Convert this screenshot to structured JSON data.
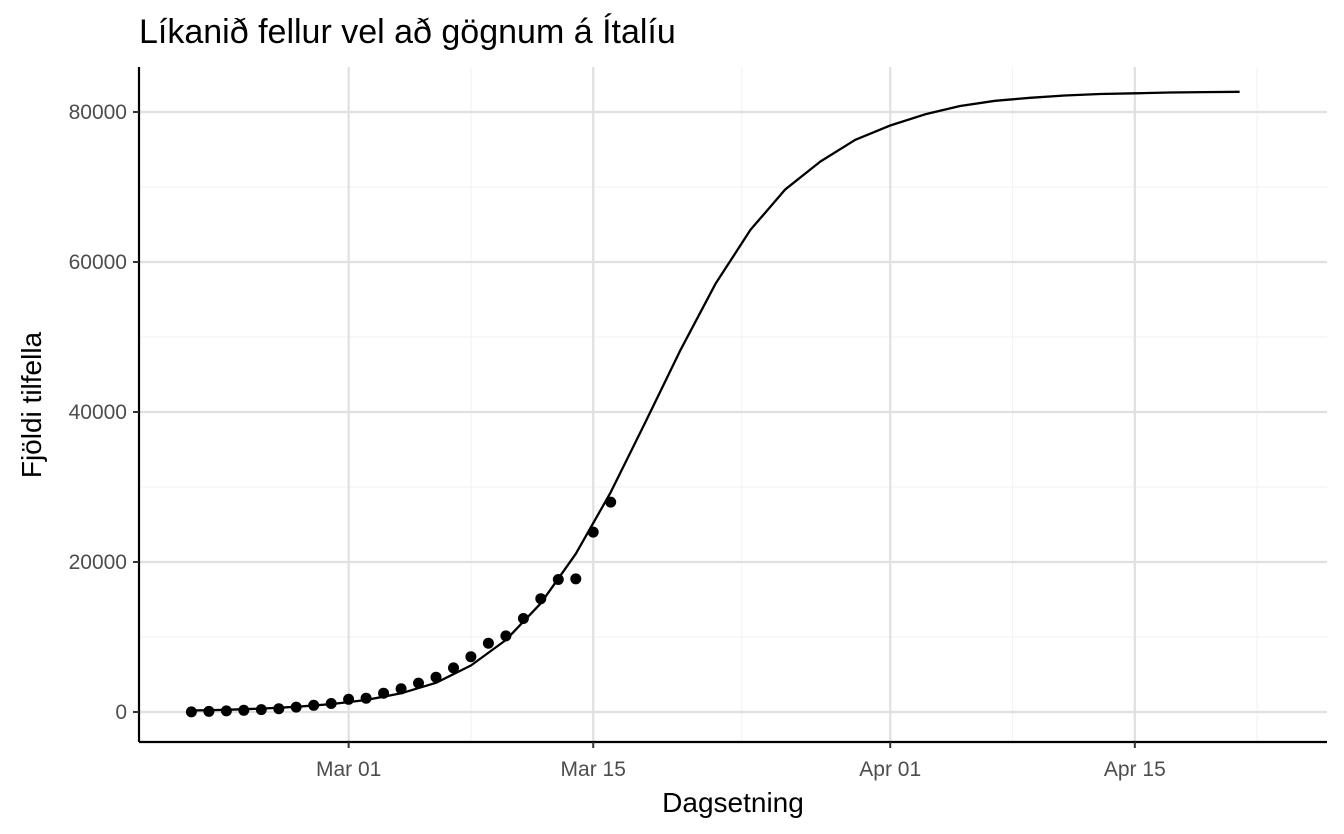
{
  "chart_data": {
    "type": "scatter",
    "title": "Líkanið fellur vel að gögnum á Ítalíu",
    "xlabel": "Dagsetning",
    "ylabel": "Fjöldi tilfella",
    "x_range": [
      "2020-02-18",
      "2020-04-26"
    ],
    "ylim": [
      -4000,
      86000
    ],
    "x_ticks": [
      {
        "date": "2020-03-01",
        "label": "Mar 01"
      },
      {
        "date": "2020-03-15",
        "label": "Mar 15"
      },
      {
        "date": "2020-04-01",
        "label": "Apr 01"
      },
      {
        "date": "2020-04-15",
        "label": "Apr 15"
      }
    ],
    "y_ticks": [
      {
        "value": 0,
        "label": "0"
      },
      {
        "value": 20000,
        "label": "20000"
      },
      {
        "value": 40000,
        "label": "40000"
      },
      {
        "value": 60000,
        "label": "60000"
      },
      {
        "value": 80000,
        "label": "80000"
      }
    ],
    "grid": true,
    "legend": "none",
    "series": [
      {
        "kind": "points",
        "color": "#000000",
        "points": [
          {
            "x": "2020-02-21",
            "y": 20
          },
          {
            "x": "2020-02-22",
            "y": 79
          },
          {
            "x": "2020-02-23",
            "y": 150
          },
          {
            "x": "2020-02-24",
            "y": 227
          },
          {
            "x": "2020-02-25",
            "y": 320
          },
          {
            "x": "2020-02-26",
            "y": 445
          },
          {
            "x": "2020-02-27",
            "y": 650
          },
          {
            "x": "2020-02-28",
            "y": 888
          },
          {
            "x": "2020-02-29",
            "y": 1128
          },
          {
            "x": "2020-03-01",
            "y": 1694
          },
          {
            "x": "2020-03-02",
            "y": 1835
          },
          {
            "x": "2020-03-03",
            "y": 2502
          },
          {
            "x": "2020-03-04",
            "y": 3089
          },
          {
            "x": "2020-03-05",
            "y": 3858
          },
          {
            "x": "2020-03-06",
            "y": 4636
          },
          {
            "x": "2020-03-07",
            "y": 5883
          },
          {
            "x": "2020-03-08",
            "y": 7375
          },
          {
            "x": "2020-03-09",
            "y": 9172
          },
          {
            "x": "2020-03-10",
            "y": 10149
          },
          {
            "x": "2020-03-11",
            "y": 12462
          },
          {
            "x": "2020-03-12",
            "y": 15113
          },
          {
            "x": "2020-03-13",
            "y": 17660
          },
          {
            "x": "2020-03-14",
            "y": 17750
          },
          {
            "x": "2020-03-15",
            "y": 23980
          },
          {
            "x": "2020-03-16",
            "y": 27980
          }
        ]
      },
      {
        "kind": "line",
        "color": "#000000",
        "points": [
          {
            "x": "2020-02-21",
            "y": 200
          },
          {
            "x": "2020-02-23",
            "y": 300
          },
          {
            "x": "2020-02-25",
            "y": 450
          },
          {
            "x": "2020-02-27",
            "y": 700
          },
          {
            "x": "2020-02-29",
            "y": 1050
          },
          {
            "x": "2020-03-02",
            "y": 1600
          },
          {
            "x": "2020-03-04",
            "y": 2500
          },
          {
            "x": "2020-03-06",
            "y": 3900
          },
          {
            "x": "2020-03-08",
            "y": 6200
          },
          {
            "x": "2020-03-10",
            "y": 9600
          },
          {
            "x": "2020-03-12",
            "y": 14500
          },
          {
            "x": "2020-03-14",
            "y": 21100
          },
          {
            "x": "2020-03-16",
            "y": 29300
          },
          {
            "x": "2020-03-18",
            "y": 38700
          },
          {
            "x": "2020-03-20",
            "y": 48300
          },
          {
            "x": "2020-03-22",
            "y": 57100
          },
          {
            "x": "2020-03-24",
            "y": 64300
          },
          {
            "x": "2020-03-26",
            "y": 69700
          },
          {
            "x": "2020-03-28",
            "y": 73400
          },
          {
            "x": "2020-03-30",
            "y": 76300
          },
          {
            "x": "2020-04-01",
            "y": 78200
          },
          {
            "x": "2020-04-03",
            "y": 79700
          },
          {
            "x": "2020-04-05",
            "y": 80800
          },
          {
            "x": "2020-04-07",
            "y": 81500
          },
          {
            "x": "2020-04-09",
            "y": 81900
          },
          {
            "x": "2020-04-11",
            "y": 82200
          },
          {
            "x": "2020-04-13",
            "y": 82400
          },
          {
            "x": "2020-04-15",
            "y": 82500
          },
          {
            "x": "2020-04-17",
            "y": 82600
          },
          {
            "x": "2020-04-19",
            "y": 82650
          },
          {
            "x": "2020-04-21",
            "y": 82700
          }
        ]
      }
    ]
  }
}
